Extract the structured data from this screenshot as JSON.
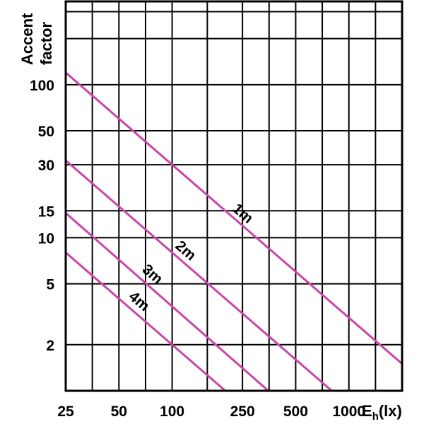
{
  "chart_data": {
    "type": "line",
    "x_scale": "log",
    "y_scale": "log",
    "grid": true,
    "xlabel_main": "E",
    "xlabel_sub": "h",
    "xlabel_unit": "(lx)",
    "ylabel_line1": "Accent",
    "ylabel_line2": "factor",
    "x_ticks": [
      25,
      50,
      100,
      250,
      500,
      1000
    ],
    "x_tick_labels": [
      "25",
      "50",
      "100",
      "250",
      "500",
      "1000"
    ],
    "y_ticks": [
      2,
      5,
      10,
      15,
      30,
      50,
      100
    ],
    "y_tick_labels": [
      "2",
      "5",
      "10",
      "15",
      "30",
      "50",
      "100"
    ],
    "xlim": [
      25,
      2000
    ],
    "ylim": [
      1,
      350
    ],
    "series": [
      {
        "name": "1m",
        "x": [
          25,
          2000
        ],
        "y": [
          120,
          1.5
        ]
      },
      {
        "name": "2m",
        "x": [
          25,
          800
        ],
        "y": [
          32,
          1
        ]
      },
      {
        "name": "3m",
        "x": [
          25,
          350
        ],
        "y": [
          14.5,
          1
        ]
      },
      {
        "name": "4m",
        "x": [
          25,
          200
        ],
        "y": [
          8,
          1
        ]
      }
    ],
    "line_color": "#cc44a8"
  }
}
